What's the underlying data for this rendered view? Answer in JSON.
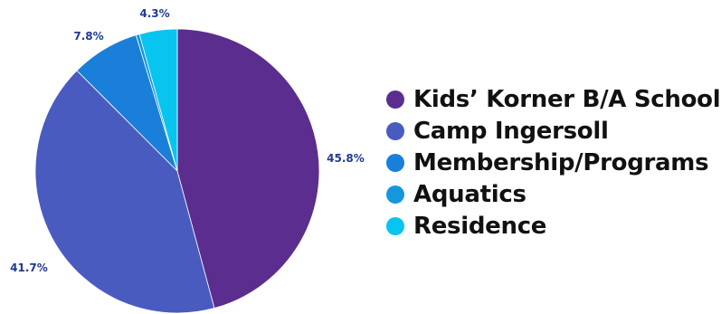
{
  "chart_data": {
    "type": "pie",
    "title": "",
    "slices": [
      {
        "label": "Kids’ Korner B/A School",
        "value": 45.8,
        "display": "45.8%",
        "color": "#5b2d8e"
      },
      {
        "label": "Camp Ingersoll",
        "value": 41.7,
        "display": "41.7%",
        "color": "#4a5bbf"
      },
      {
        "label": "Membership/Programs",
        "value": 7.8,
        "display": "7.8%",
        "color": "#1a7fd8"
      },
      {
        "label": "Aquatics",
        "value": 0.4,
        "display": "",
        "color": "#1597e0"
      },
      {
        "label": "Residence",
        "value": 4.3,
        "display": "4.3%",
        "color": "#07c5ee"
      }
    ],
    "legend_position": "right",
    "start_angle_deg": 0,
    "direction": "clockwise"
  }
}
